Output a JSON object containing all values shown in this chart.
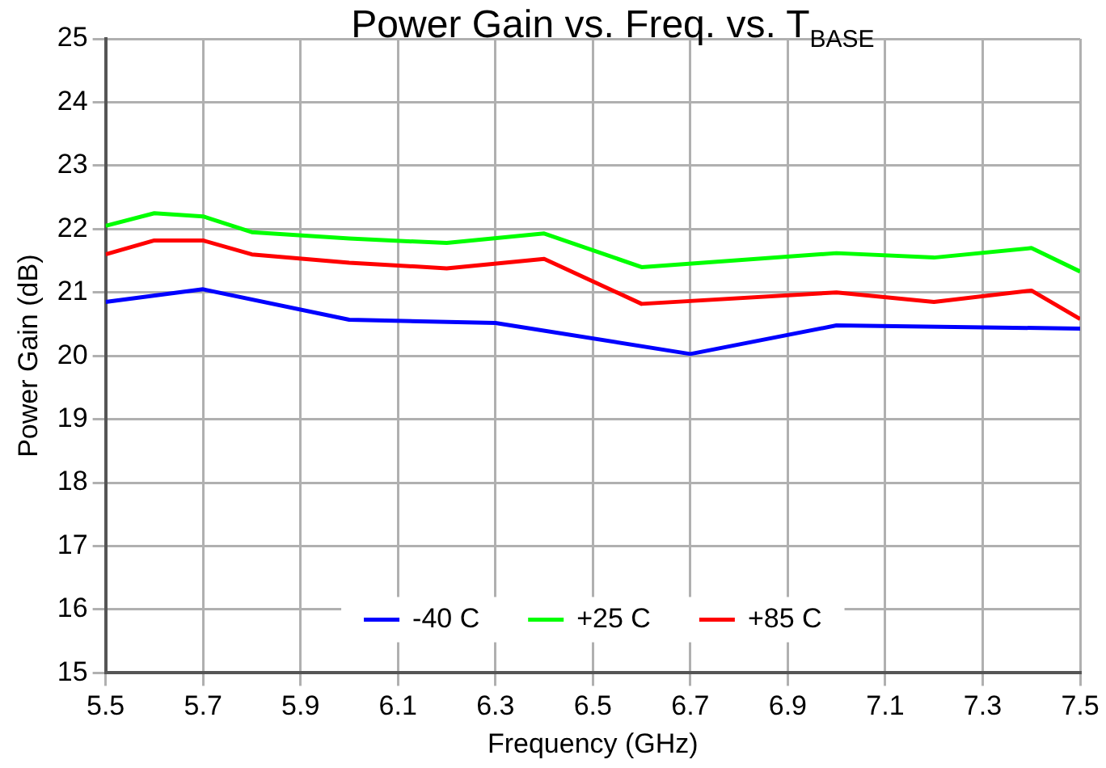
{
  "chart_data": {
    "type": "line",
    "title": "Power Gain vs. Freq. vs. T$_{BASE}$",
    "xlabel": "Frequency (GHz)",
    "ylabel": "Power Gain (dB)",
    "xlim": [
      5.5,
      7.5
    ],
    "xticks": [
      5.5,
      5.7,
      5.9,
      6.1,
      6.3,
      6.5,
      6.7,
      6.9,
      7.1,
      7.3,
      7.5
    ],
    "ylim": [
      15,
      25
    ],
    "yticks": [
      15,
      16,
      17,
      18,
      19,
      20,
      21,
      22,
      23,
      24,
      25
    ],
    "grid": true,
    "legend": "bottom",
    "marker": "none",
    "line_style": "solid",
    "series": [
      {
        "name": "-40 C",
        "color": "#0000ff",
        "x": [
          5.5,
          5.7,
          6.0,
          6.3,
          6.7,
          7.0,
          7.5
        ],
        "values": [
          20.85,
          21.05,
          20.57,
          20.52,
          20.03,
          20.48,
          20.43
        ]
      },
      {
        "name": "+25 C",
        "color": "#00ff00",
        "x": [
          5.5,
          5.6,
          5.7,
          5.8,
          6.0,
          6.2,
          6.4,
          6.6,
          7.0,
          7.2,
          7.4,
          7.5
        ],
        "values": [
          22.05,
          22.25,
          22.2,
          21.95,
          21.85,
          21.78,
          21.93,
          21.4,
          21.62,
          21.55,
          21.7,
          21.33
        ]
      },
      {
        "name": "+85 C",
        "color": "#ff0000",
        "x": [
          5.5,
          5.6,
          5.7,
          5.8,
          6.0,
          6.2,
          6.4,
          6.6,
          7.0,
          7.2,
          7.4,
          7.5
        ],
        "values": [
          21.6,
          21.82,
          21.82,
          21.6,
          21.47,
          21.38,
          21.53,
          20.82,
          21.0,
          20.85,
          21.03,
          20.58
        ]
      }
    ]
  }
}
